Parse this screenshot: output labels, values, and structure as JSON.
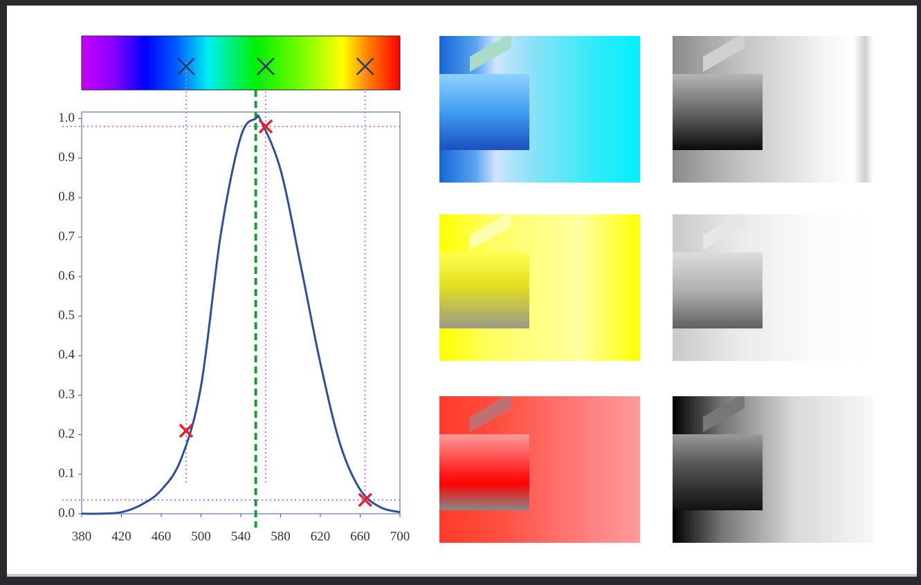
{
  "chart_data": {
    "type": "line",
    "x": [
      380,
      400,
      420,
      440,
      460,
      480,
      500,
      520,
      540,
      555,
      560,
      580,
      600,
      620,
      640,
      660,
      680,
      700
    ],
    "values": [
      0.0001,
      0.0004,
      0.004,
      0.023,
      0.06,
      0.139,
      0.323,
      0.71,
      0.954,
      1.0,
      0.995,
      0.87,
      0.631,
      0.381,
      0.175,
      0.061,
      0.017,
      0.004
    ],
    "color": "#2b4f9e",
    "markers": {
      "x": [
        485,
        565,
        665
      ],
      "values": [
        0.21,
        0.98,
        0.035
      ],
      "color": "#e8202a"
    },
    "vline": 555,
    "xlim": [
      380,
      700
    ],
    "ylim": [
      0,
      1.02
    ],
    "xticks": [
      380,
      420,
      460,
      500,
      540,
      580,
      620,
      660,
      700
    ],
    "yticks": [
      {
        "value": 0,
        "label": "0.0"
      },
      0.1,
      0.2,
      0.3,
      0.4,
      0.5,
      0.6,
      0.7,
      0.8,
      0.9,
      {
        "value": 1,
        "label": "1.0"
      }
    ]
  }
}
